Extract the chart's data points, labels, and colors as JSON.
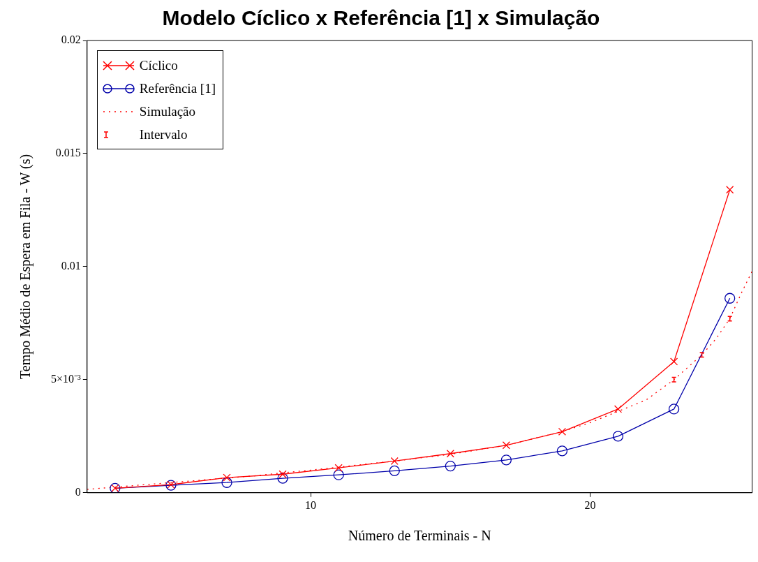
{
  "chart_data": {
    "type": "line",
    "title": "Modelo Cíclico x Referência [1] x Simulação",
    "xlabel": "Número de Terminais - N",
    "ylabel": "Tempo Médio de Espera em Fila - W (s)",
    "xlim": [
      2,
      25.8
    ],
    "xticks": [
      10,
      20
    ],
    "ylim": [
      0,
      0.02
    ],
    "yticks": [
      0,
      {
        "value": 0.005,
        "label": "5×10⁻³"
      },
      0.01,
      0.015,
      0.02
    ],
    "grid": false,
    "legend": "top left",
    "series": [
      {
        "name": "Cíclico",
        "color": "#ff0000",
        "marker": "cross",
        "line_style": "solid",
        "x": [
          3,
          5,
          7,
          9,
          11,
          13,
          15,
          17,
          19,
          21,
          23,
          25
        ],
        "values": [
          0.0002,
          0.00036,
          0.00067,
          0.00082,
          0.0011,
          0.0014,
          0.00173,
          0.0021,
          0.0027,
          0.0037,
          0.0058,
          0.0134
        ]
      },
      {
        "name": "Referência [1]",
        "color": "#0000aa",
        "marker": "circle",
        "line_style": "solid",
        "x": [
          3,
          5,
          7,
          9,
          11,
          13,
          15,
          17,
          19,
          21,
          23,
          25
        ],
        "values": [
          0.0002,
          0.00033,
          0.00045,
          0.00064,
          0.00079,
          0.00097,
          0.00118,
          0.00145,
          0.00185,
          0.0025,
          0.0037,
          0.0086
        ]
      },
      {
        "name": "Simulação",
        "color": "#ff0000",
        "marker": "none",
        "line_style": "dotted",
        "x": [
          2,
          3,
          4,
          5,
          6,
          7,
          8,
          9,
          10,
          11,
          12,
          13,
          14,
          15,
          16,
          17,
          18,
          19,
          20,
          21,
          22,
          23,
          24,
          24.5,
          25,
          25.4,
          25.8
        ],
        "values": [
          0.00015,
          0.00025,
          0.00035,
          0.00045,
          0.00055,
          0.00065,
          0.00075,
          0.00088,
          0.001,
          0.00113,
          0.00127,
          0.0014,
          0.00155,
          0.0017,
          0.0019,
          0.0021,
          0.0024,
          0.0027,
          0.0031,
          0.0036,
          0.0041,
          0.005,
          0.0061,
          0.0068,
          0.0077,
          0.0088,
          0.0098
        ]
      },
      {
        "name": "Intervalo",
        "type": "scatter",
        "color": "#ff0000",
        "x": [
          23,
          24,
          25
        ],
        "values": [
          0.005,
          0.0061,
          0.0077
        ],
        "errors": [
          0.0001,
          0.0001,
          0.0001
        ]
      }
    ]
  }
}
